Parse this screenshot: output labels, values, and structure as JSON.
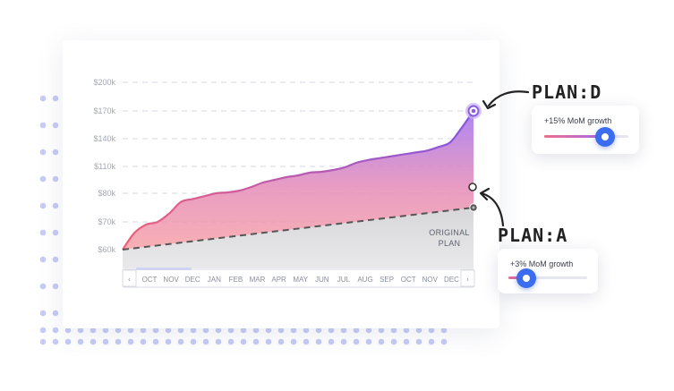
{
  "chart_data": {
    "type": "area",
    "title": "",
    "xlabel": "",
    "ylabel": "",
    "y_ticks": [
      "$200k",
      "$170k",
      "$140k",
      "$110k",
      "$80k",
      "$70k",
      "$60k"
    ],
    "x_ticks": [
      "OCT",
      "NOV",
      "DEC",
      "JAN",
      "FEB",
      "MAR",
      "APR",
      "MAY",
      "JUN",
      "JUL",
      "AUG",
      "SEP",
      "OCT",
      "NOV",
      "DEC"
    ],
    "grid": true,
    "legend": "none",
    "series": [
      {
        "name": "PLAN:D",
        "color": "#8a5ce0",
        "x": [
          0,
          0.5,
          1,
          1.5,
          2,
          2.5,
          3,
          3.5,
          4,
          4.5,
          5,
          5.5,
          6,
          6.5,
          7,
          7.5,
          8,
          8.5,
          9,
          9.5,
          10,
          10.5,
          11,
          11.5,
          12,
          12.5,
          13,
          13.5,
          14,
          14.5,
          15
        ],
        "values": [
          60,
          66,
          69,
          70,
          73,
          77,
          78,
          79,
          80,
          81,
          83,
          87,
          92,
          95,
          98,
          100,
          103,
          104,
          106,
          109,
          114,
          117,
          119,
          121,
          123,
          125,
          127,
          131,
          136,
          152,
          170
        ]
      },
      {
        "name": "ORIGINAL PLAN",
        "color": "#555555",
        "x": [
          0,
          15
        ],
        "values": [
          60,
          75
        ]
      }
    ],
    "markers": [
      {
        "label": "PLAN:D",
        "x": 15,
        "value": 170
      },
      {
        "label": "PLAN:A",
        "x": 15,
        "value": 88
      },
      {
        "label": "ORIGINAL PLAN",
        "x": 15,
        "value": 75
      }
    ],
    "annotation": {
      "line1": "ORIGINAL",
      "line2": "PLAN"
    }
  },
  "plan_d_label": "PLAN:D",
  "plan_a_label": "PLAN:A",
  "slider_d": {
    "title": "+15% MoM growth",
    "value_fraction": 0.72
  },
  "slider_a": {
    "title": "+3% MoM growth",
    "value_fraction": 0.23
  },
  "nav_left": "‹",
  "nav_right": "›",
  "colors": {
    "plan_d": "#8a5ce0",
    "plan_d_area_top": "#a57cf0",
    "plan_d_area_bottom": "#f38fa0",
    "baseline": "#555555",
    "grid": "#d7d9e0",
    "dots": "#c5ccf6",
    "knob": "#3c6df0"
  }
}
